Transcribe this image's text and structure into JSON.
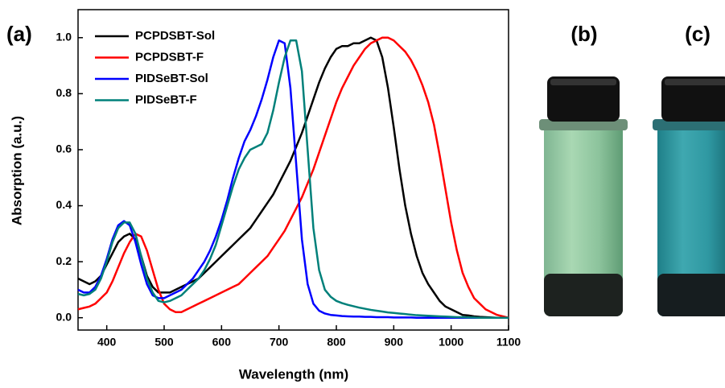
{
  "chart_data": {
    "type": "line",
    "label": "(a)",
    "xlabel": "Wavelength (nm)",
    "ylabel": "Absorption (a.u.)",
    "x": [
      350,
      360,
      370,
      380,
      390,
      400,
      410,
      420,
      430,
      440,
      450,
      460,
      470,
      480,
      490,
      500,
      510,
      520,
      530,
      540,
      550,
      560,
      570,
      580,
      590,
      600,
      610,
      620,
      630,
      640,
      650,
      660,
      670,
      680,
      690,
      700,
      710,
      720,
      730,
      740,
      750,
      760,
      770,
      780,
      790,
      800,
      810,
      820,
      830,
      840,
      850,
      860,
      870,
      880,
      890,
      900,
      910,
      920,
      930,
      940,
      950,
      960,
      970,
      980,
      990,
      1000,
      1010,
      1020,
      1030,
      1040,
      1050,
      1060,
      1070,
      1080,
      1090,
      1100
    ],
    "series": [
      {
        "name": "PCPDSBT-Sol",
        "color": "#000000",
        "values": [
          0.14,
          0.13,
          0.12,
          0.13,
          0.15,
          0.19,
          0.23,
          0.27,
          0.29,
          0.3,
          0.28,
          0.22,
          0.15,
          0.11,
          0.09,
          0.09,
          0.09,
          0.1,
          0.11,
          0.12,
          0.13,
          0.14,
          0.16,
          0.18,
          0.2,
          0.22,
          0.24,
          0.26,
          0.28,
          0.3,
          0.32,
          0.35,
          0.38,
          0.41,
          0.44,
          0.48,
          0.52,
          0.56,
          0.61,
          0.66,
          0.72,
          0.78,
          0.84,
          0.89,
          0.93,
          0.96,
          0.97,
          0.97,
          0.98,
          0.98,
          0.99,
          1.0,
          0.99,
          0.93,
          0.82,
          0.68,
          0.53,
          0.4,
          0.3,
          0.22,
          0.16,
          0.12,
          0.09,
          0.06,
          0.04,
          0.03,
          0.02,
          0.01,
          0.008,
          0.005,
          0.003,
          0.002,
          0.001,
          0,
          0,
          0
        ]
      },
      {
        "name": "PCPDSBT-F",
        "color": "#ff0000",
        "values": [
          0.03,
          0.035,
          0.04,
          0.05,
          0.07,
          0.09,
          0.13,
          0.18,
          0.23,
          0.27,
          0.3,
          0.29,
          0.24,
          0.17,
          0.1,
          0.05,
          0.03,
          0.02,
          0.02,
          0.03,
          0.04,
          0.05,
          0.06,
          0.07,
          0.08,
          0.09,
          0.1,
          0.11,
          0.12,
          0.14,
          0.16,
          0.18,
          0.2,
          0.22,
          0.25,
          0.28,
          0.31,
          0.35,
          0.39,
          0.43,
          0.48,
          0.53,
          0.59,
          0.65,
          0.71,
          0.77,
          0.82,
          0.86,
          0.9,
          0.93,
          0.96,
          0.98,
          0.99,
          1.0,
          1.0,
          0.99,
          0.97,
          0.95,
          0.92,
          0.88,
          0.83,
          0.77,
          0.69,
          0.58,
          0.46,
          0.34,
          0.24,
          0.16,
          0.11,
          0.07,
          0.05,
          0.03,
          0.02,
          0.01,
          0.005,
          0
        ]
      },
      {
        "name": "PIDSeBT-Sol",
        "color": "#0000ff",
        "values": [
          0.1,
          0.09,
          0.09,
          0.11,
          0.15,
          0.21,
          0.28,
          0.33,
          0.345,
          0.33,
          0.27,
          0.19,
          0.12,
          0.08,
          0.07,
          0.07,
          0.08,
          0.09,
          0.1,
          0.12,
          0.14,
          0.17,
          0.2,
          0.24,
          0.29,
          0.35,
          0.42,
          0.5,
          0.57,
          0.63,
          0.67,
          0.72,
          0.78,
          0.85,
          0.93,
          0.99,
          0.98,
          0.82,
          0.55,
          0.28,
          0.12,
          0.05,
          0.025,
          0.015,
          0.01,
          0.008,
          0.006,
          0.005,
          0.004,
          0.004,
          0.003,
          0.003,
          0.002,
          0.002,
          0.002,
          0.001,
          0.001,
          0.001,
          0.001,
          0,
          0,
          0,
          0,
          0,
          0,
          0,
          0,
          0,
          0,
          0,
          0,
          0,
          0,
          0,
          0,
          0
        ]
      },
      {
        "name": "PIDSeBT-F",
        "color": "#00807a",
        "values": [
          0.085,
          0.08,
          0.085,
          0.1,
          0.14,
          0.2,
          0.27,
          0.32,
          0.34,
          0.34,
          0.3,
          0.22,
          0.14,
          0.09,
          0.06,
          0.055,
          0.06,
          0.07,
          0.08,
          0.1,
          0.12,
          0.14,
          0.17,
          0.21,
          0.26,
          0.33,
          0.4,
          0.47,
          0.53,
          0.57,
          0.6,
          0.61,
          0.62,
          0.66,
          0.74,
          0.84,
          0.93,
          0.99,
          0.99,
          0.88,
          0.6,
          0.32,
          0.17,
          0.1,
          0.075,
          0.06,
          0.052,
          0.046,
          0.041,
          0.036,
          0.032,
          0.028,
          0.025,
          0.022,
          0.019,
          0.017,
          0.015,
          0.013,
          0.011,
          0.009,
          0.008,
          0.007,
          0.006,
          0.005,
          0.004,
          0.003,
          0.002,
          0.002,
          0.001,
          0.001,
          0,
          0,
          0,
          0,
          0,
          0
        ]
      }
    ],
    "xlim": [
      350,
      1100
    ],
    "xticks": [
      400,
      500,
      600,
      700,
      800,
      900,
      1000,
      1100
    ],
    "ylim": [
      -0.044,
      1.1
    ],
    "yticks": [
      {
        "value": 0,
        "label": "0.0"
      },
      0.2,
      0.4,
      0.6,
      0.8,
      {
        "value": 1,
        "label": "1.0"
      }
    ],
    "grid": false,
    "legend": "upper left"
  },
  "photos": [
    {
      "label": "(b)"
    },
    {
      "label": "(c)"
    }
  ]
}
